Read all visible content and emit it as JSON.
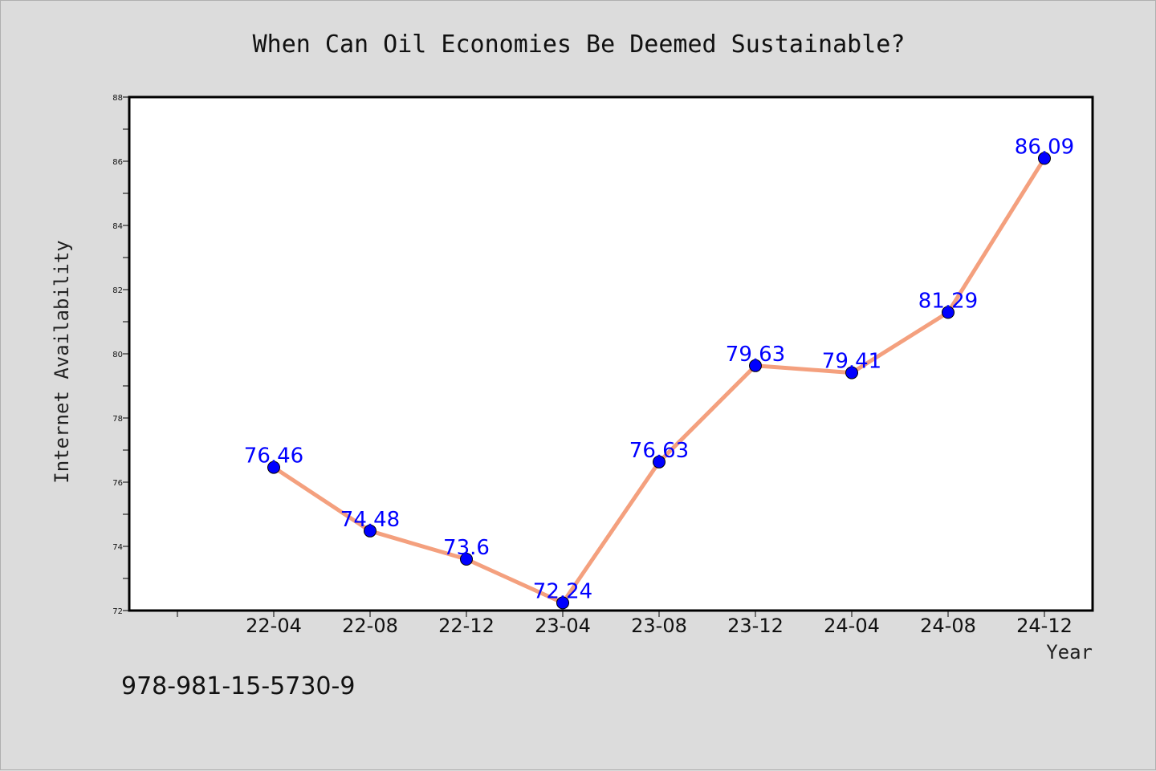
{
  "chart_data": {
    "type": "line",
    "title": "When Can Oil Economies Be Deemed Sustainable?",
    "xlabel": "Year",
    "ylabel": "Internet Availability",
    "categories": [
      "22-04",
      "22-08",
      "22-12",
      "23-04",
      "23-08",
      "23-12",
      "24-04",
      "24-08",
      "24-12"
    ],
    "values": [
      76.46,
      74.48,
      73.6,
      72.24,
      76.63,
      79.63,
      79.41,
      81.29,
      86.09
    ],
    "data_labels": [
      "76.46",
      "74.48",
      "73.6",
      "72.24",
      "76.63",
      "79.63",
      "79.41",
      "81.29",
      "86.09"
    ],
    "ylim": [
      72,
      88
    ],
    "yticks": [
      72,
      74,
      76,
      78,
      80,
      82,
      84,
      86,
      88
    ],
    "ytick_labels": [
      "72",
      "74",
      "76",
      "78",
      "80",
      "82",
      "84",
      "86",
      "88"
    ],
    "grid": false,
    "line_color": "#f4a07e",
    "marker_color": "#0000ff",
    "label_color": "#0000ff"
  },
  "footer": {
    "isbn": "978-981-15-5730-9"
  }
}
